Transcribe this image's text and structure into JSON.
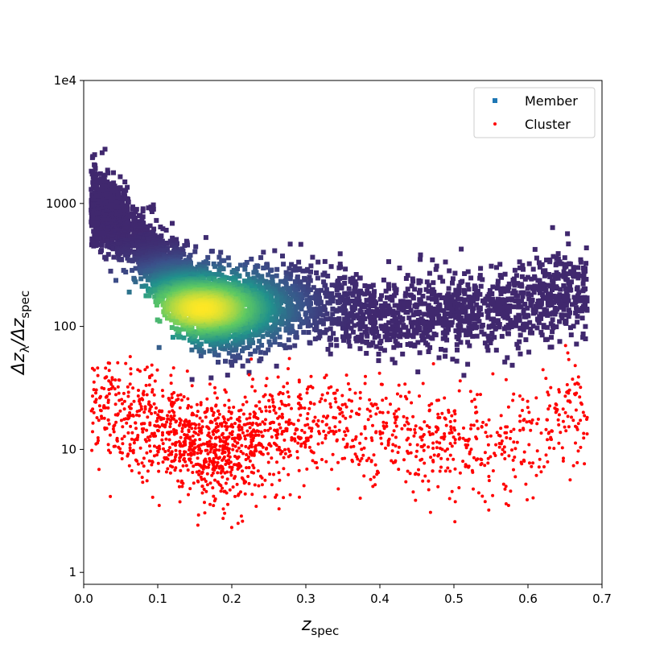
{
  "chart_data": {
    "type": "scatter",
    "title": "",
    "xlabel": {
      "main": "z",
      "sub": "spec"
    },
    "ylabel": {
      "main1": "Δz",
      "sub1": "λ",
      "mid": "/Δz",
      "sub2": "spec"
    },
    "xlim": [
      0.0,
      0.7
    ],
    "ylim": [
      0.8,
      10000
    ],
    "yscale": "log",
    "grid": false,
    "legend_placement": "top-right",
    "x_ticks": [
      {
        "value": 0.0,
        "label": "0.0"
      },
      {
        "value": 0.1,
        "label": "0.1"
      },
      {
        "value": 0.2,
        "label": "0.2"
      },
      {
        "value": 0.3,
        "label": "0.3"
      },
      {
        "value": 0.4,
        "label": "0.4"
      },
      {
        "value": 0.5,
        "label": "0.5"
      },
      {
        "value": 0.6,
        "label": "0.6"
      },
      {
        "value": 0.7,
        "label": "0.7"
      }
    ],
    "y_ticks": [
      {
        "value": 1,
        "label": "1"
      },
      {
        "value": 10,
        "label": "10"
      },
      {
        "value": 100,
        "label": "100"
      },
      {
        "value": 1000,
        "label": "1000"
      },
      {
        "value": 10000,
        "label": "1e4"
      }
    ],
    "series": [
      {
        "name": "Member",
        "marker": "square",
        "legend_color": "#1f77b4",
        "colormap": [
          "#440154",
          "#3b528b",
          "#21918c",
          "#5ec962",
          "#fde725"
        ],
        "x_range": [
          0.01,
          0.68
        ],
        "density_peak": {
          "x": 0.16,
          "y": 140
        },
        "trend": [
          {
            "x": 0.015,
            "y": 1000
          },
          {
            "x": 0.05,
            "y": 700
          },
          {
            "x": 0.1,
            "y": 300
          },
          {
            "x": 0.15,
            "y": 160
          },
          {
            "x": 0.2,
            "y": 130
          },
          {
            "x": 0.3,
            "y": 160
          },
          {
            "x": 0.4,
            "y": 120
          },
          {
            "x": 0.5,
            "y": 130
          },
          {
            "x": 0.6,
            "y": 150
          },
          {
            "x": 0.68,
            "y": 200
          }
        ]
      },
      {
        "name": "Cluster",
        "marker": "circle",
        "color": "#ff0000",
        "x_range": [
          0.01,
          0.68
        ],
        "trend": [
          {
            "x": 0.02,
            "y": 20
          },
          {
            "x": 0.1,
            "y": 15
          },
          {
            "x": 0.15,
            "y": 10
          },
          {
            "x": 0.2,
            "y": 10
          },
          {
            "x": 0.3,
            "y": 16
          },
          {
            "x": 0.4,
            "y": 14
          },
          {
            "x": 0.5,
            "y": 10
          },
          {
            "x": 0.6,
            "y": 12
          },
          {
            "x": 0.68,
            "y": 22
          }
        ]
      }
    ]
  }
}
